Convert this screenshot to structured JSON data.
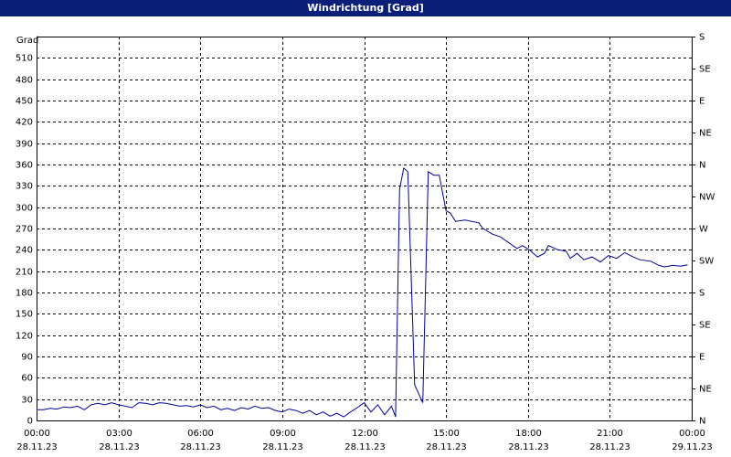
{
  "chart_data": {
    "type": "line",
    "title": "Windrichtung [Grad]",
    "y_label": "Grad",
    "color": "#0000a0",
    "grid": true,
    "x": [
      0,
      0.25,
      0.5,
      0.75,
      1,
      1.25,
      1.5,
      1.75,
      2,
      2.25,
      2.5,
      2.75,
      3,
      3.25,
      3.5,
      3.75,
      4,
      4.25,
      4.5,
      4.75,
      5,
      5.25,
      5.5,
      5.75,
      6,
      6.25,
      6.5,
      6.75,
      7,
      7.25,
      7.5,
      7.75,
      8,
      8.25,
      8.5,
      8.75,
      9,
      9.25,
      9.5,
      9.75,
      10,
      10.25,
      10.5,
      10.75,
      11,
      11.25,
      11.5,
      11.75,
      12,
      12.25,
      12.5,
      12.75,
      13,
      13.15,
      13.3,
      13.45,
      13.6,
      13.85,
      14.15,
      14.35,
      14.55,
      14.75,
      15,
      15.15,
      15.35,
      15.7,
      16.2,
      16.35,
      16.7,
      17,
      17.3,
      17.6,
      17.8,
      18.05,
      18.35,
      18.6,
      18.75,
      19.1,
      19.4,
      19.55,
      19.8,
      20.05,
      20.35,
      20.65,
      20.95,
      21.25,
      21.55,
      21.85,
      22.1,
      22.5,
      22.8,
      23,
      23.3,
      23.6,
      23.85
    ],
    "values": [
      15,
      15,
      17,
      16,
      19,
      18,
      20,
      15,
      22,
      24,
      22,
      25,
      22,
      20,
      18,
      25,
      24,
      22,
      25,
      24,
      22,
      20,
      21,
      19,
      22,
      18,
      20,
      15,
      17,
      14,
      18,
      16,
      20,
      17,
      18,
      14,
      12,
      16,
      14,
      10,
      14,
      8,
      12,
      6,
      10,
      5,
      12,
      18,
      25,
      12,
      22,
      8,
      20,
      5,
      325,
      355,
      350,
      50,
      25,
      350,
      345,
      345,
      295,
      292,
      280,
      282,
      278,
      270,
      262,
      258,
      250,
      242,
      246,
      240,
      230,
      235,
      246,
      240,
      238,
      228,
      235,
      226,
      230,
      223,
      232,
      228,
      236,
      230,
      226,
      224,
      218,
      216,
      218,
      217,
      219
    ],
    "xlim": [
      0,
      24
    ],
    "xticks": [
      {
        "value": 0,
        "label": "00:00",
        "date": "28.11.23"
      },
      {
        "value": 3,
        "label": "03:00",
        "date": "28.11.23"
      },
      {
        "value": 6,
        "label": "06:00",
        "date": "28.11.23"
      },
      {
        "value": 9,
        "label": "09:00",
        "date": "28.11.23"
      },
      {
        "value": 12,
        "label": "12:00",
        "date": "28.11.23"
      },
      {
        "value": 15,
        "label": "15:00",
        "date": "28.11.23"
      },
      {
        "value": 18,
        "label": "18:00",
        "date": "28.11.23"
      },
      {
        "value": 21,
        "label": "21:00",
        "date": "28.11.23"
      },
      {
        "value": 24,
        "label": "00:00",
        "date": "29.11.23"
      }
    ],
    "ylim": [
      0,
      540
    ],
    "yticks": [
      0,
      30,
      60,
      90,
      120,
      150,
      180,
      210,
      240,
      270,
      300,
      330,
      360,
      390,
      420,
      450,
      480,
      510
    ],
    "y2lim": [
      0,
      540
    ],
    "y2ticks": [
      {
        "value": 0,
        "label": "N"
      },
      {
        "value": 45,
        "label": "NE"
      },
      {
        "value": 90,
        "label": "E"
      },
      {
        "value": 135,
        "label": "SE"
      },
      {
        "value": 180,
        "label": "S"
      },
      {
        "value": 225,
        "label": "SW"
      },
      {
        "value": 270,
        "label": "W"
      },
      {
        "value": 315,
        "label": "NW"
      },
      {
        "value": 360,
        "label": "N"
      },
      {
        "value": 405,
        "label": "NE"
      },
      {
        "value": 450,
        "label": "E"
      },
      {
        "value": 495,
        "label": "SE"
      },
      {
        "value": 540,
        "label": "S"
      }
    ]
  }
}
